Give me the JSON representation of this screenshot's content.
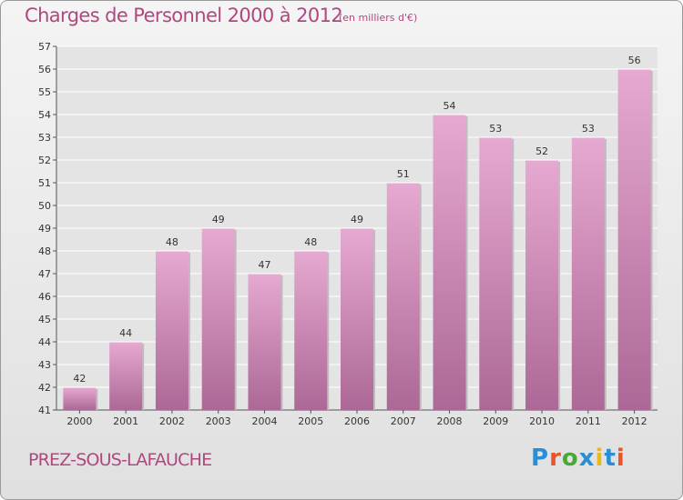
{
  "header": {
    "title": "Charges de Personnel 2000 à 2012",
    "subtitle": "(en milliers d'€)"
  },
  "footer": {
    "place": "PREZ-SOUS-LAFAUCHE",
    "logo": "Proxiti",
    "logo_colors": [
      "#2a8ed6",
      "#e8562a",
      "#4aa83a",
      "#2a8ed6",
      "#e8b81e",
      "#2a8ed6",
      "#e8562a"
    ]
  },
  "colors": {
    "bar_top": "#e6a9d1",
    "bar_bottom": "#ac6896",
    "text": "#b0487f",
    "grid": "#ffffff"
  },
  "chart_data": {
    "type": "bar",
    "title": "Charges de Personnel 2000 à 2012",
    "subtitle": "(en milliers d'€)",
    "categories": [
      "2000",
      "2001",
      "2002",
      "2003",
      "2004",
      "2005",
      "2006",
      "2007",
      "2008",
      "2009",
      "2010",
      "2011",
      "2012"
    ],
    "values": [
      42,
      44,
      48,
      49,
      47,
      48,
      49,
      51,
      54,
      53,
      52,
      53,
      56
    ],
    "ylim": [
      41,
      57
    ],
    "yticks": [
      41,
      42,
      43,
      44,
      45,
      46,
      47,
      48,
      49,
      50,
      51,
      52,
      53,
      54,
      55,
      56,
      57
    ],
    "grid": true,
    "data_labels": true
  }
}
